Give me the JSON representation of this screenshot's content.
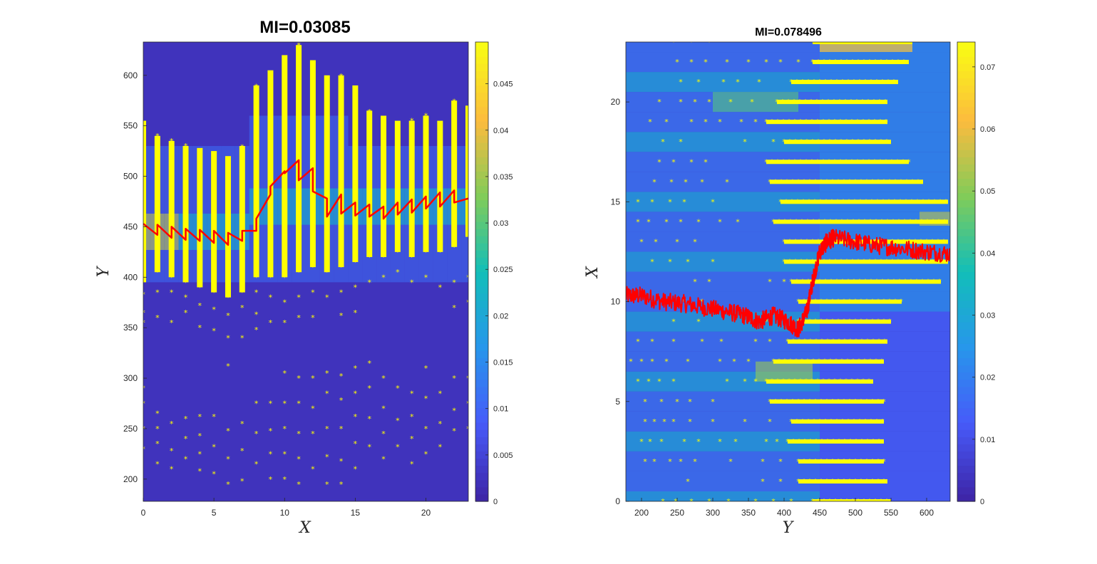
{
  "chart_data": [
    {
      "type": "heatmap",
      "title": "MI=0.03085",
      "xlabel": "X",
      "ylabel": "Y",
      "xlim": [
        0,
        23
      ],
      "ylim": [
        178,
        633
      ],
      "xticks": [
        0,
        5,
        10,
        15,
        20
      ],
      "yticks": [
        200,
        250,
        300,
        350,
        400,
        450,
        500,
        550,
        600
      ],
      "colorbar": {
        "range": [
          0,
          0.0495
        ],
        "ticks": [
          0,
          0.005,
          0.01,
          0.015,
          0.02,
          0.025,
          0.03,
          0.035,
          0.04,
          0.045
        ],
        "tick_labels": [
          "0",
          "0.005",
          "0.01",
          "0.015",
          "0.02",
          "0.025",
          "0.03",
          "0.035",
          "0.04",
          "0.045"
        ],
        "colormap": "parula"
      },
      "series": [
        {
          "kind": "line",
          "color": "#ff0000",
          "x": [
            0,
            1,
            1,
            2,
            2,
            3,
            3,
            4,
            4,
            5,
            5,
            6,
            6,
            7,
            7,
            8,
            8,
            9,
            9,
            10,
            10,
            11,
            11,
            12,
            12,
            13,
            13,
            14,
            14,
            15,
            15,
            16,
            16,
            17,
            17,
            18,
            18,
            19,
            19,
            20,
            20,
            21,
            21,
            22,
            22,
            23
          ],
          "y": [
            453,
            442,
            452,
            439,
            450,
            437,
            448,
            436,
            447,
            434,
            446,
            432,
            444,
            436,
            446,
            446,
            458,
            482,
            490,
            505,
            503,
            516,
            496,
            508,
            485,
            478,
            460,
            482,
            463,
            474,
            461,
            472,
            460,
            470,
            458,
            474,
            462,
            477,
            464,
            480,
            468,
            484,
            470,
            486,
            474,
            478
          ]
        },
        {
          "kind": "scatter",
          "marker": "*",
          "color": "#ffff00",
          "bands": [
            {
              "x": 0,
              "dense": [
                395,
                555
              ],
              "sparse": [
                383,
                365,
                355,
                290,
                275,
                250,
                230
              ]
            },
            {
              "x": 1,
              "dense": [
                405,
                540
              ],
              "sparse": [
                385,
                360,
                265,
                250,
                235,
                215
              ]
            },
            {
              "x": 2,
              "dense": [
                400,
                535
              ],
              "sparse": [
                385,
                355,
                255,
                228,
                210
              ]
            },
            {
              "x": 3,
              "dense": [
                395,
                530
              ],
              "sparse": [
                380,
                365,
                260,
                240,
                220
              ]
            },
            {
              "x": 4,
              "dense": [
                390,
                528
              ],
              "sparse": [
                372,
                350,
                262,
                243,
                225,
                208
              ]
            },
            {
              "x": 5,
              "dense": [
                385,
                525
              ],
              "sparse": [
                368,
                347,
                262,
                232,
                205
              ]
            },
            {
              "x": 6,
              "dense": [
                380,
                520
              ],
              "sparse": [
                362,
                340,
                312,
                248,
                220,
                195
              ]
            },
            {
              "x": 7,
              "dense": [
                385,
                530
              ],
              "sparse": [
                370,
                340,
                255,
                228,
                198
              ]
            },
            {
              "x": 8,
              "dense": [
                400,
                590
              ],
              "sparse": [
                385,
                363,
                348,
                275,
                245,
                215
              ]
            },
            {
              "x": 9,
              "dense": [
                400,
                605
              ],
              "sparse": [
                380,
                355,
                275,
                248,
                225,
                200
              ]
            },
            {
              "x": 10,
              "dense": [
                400,
                620
              ],
              "sparse": [
                375,
                355,
                305,
                275,
                250,
                225,
                200
              ]
            },
            {
              "x": 11,
              "dense": [
                405,
                630
              ],
              "sparse": [
                380,
                360,
                300,
                275,
                245,
                220,
                195
              ]
            },
            {
              "x": 12,
              "dense": [
                410,
                615
              ],
              "sparse": [
                385,
                360,
                300,
                270,
                245,
                210
              ]
            },
            {
              "x": 13,
              "dense": [
                405,
                600
              ],
              "sparse": [
                380,
                305,
                285,
                250,
                222,
                195
              ]
            },
            {
              "x": 14,
              "dense": [
                410,
                600
              ],
              "sparse": [
                385,
                362,
                302,
                278,
                250,
                218,
                195
              ]
            },
            {
              "x": 15,
              "dense": [
                415,
                590
              ],
              "sparse": [
                390,
                365,
                310,
                285,
                262,
                235,
                210
              ]
            },
            {
              "x": 16,
              "dense": [
                420,
                565
              ],
              "sparse": [
                395,
                315,
                290,
                260,
                232
              ]
            },
            {
              "x": 17,
              "dense": [
                420,
                560
              ],
              "sparse": [
                400,
                300,
                270,
                245,
                220
              ]
            },
            {
              "x": 18,
              "dense": [
                425,
                555
              ],
              "sparse": [
                405,
                290,
                258,
                232
              ]
            },
            {
              "x": 19,
              "dense": [
                420,
                555
              ],
              "sparse": [
                395,
                285,
                262,
                240,
                215
              ]
            },
            {
              "x": 20,
              "dense": [
                425,
                560
              ],
              "sparse": [
                400,
                310,
                280,
                250,
                225
              ]
            },
            {
              "x": 21,
              "dense": [
                425,
                555
              ],
              "sparse": [
                390,
                285,
                255,
                232
              ]
            },
            {
              "x": 22,
              "dense": [
                430,
                575
              ],
              "sparse": [
                395,
                370,
                300,
                268,
                248
              ]
            },
            {
              "x": 23,
              "dense": [
                440,
                570
              ],
              "sparse": [
                400,
                375,
                300,
                275,
                250
              ]
            }
          ]
        }
      ]
    },
    {
      "type": "heatmap",
      "title": "MI=0.078496",
      "xlabel": "Y",
      "ylabel": "X",
      "xlim": [
        178,
        633
      ],
      "ylim": [
        0,
        23
      ],
      "xticks": [
        200,
        250,
        300,
        350,
        400,
        450,
        500,
        550,
        600
      ],
      "yticks": [
        0,
        5,
        10,
        15,
        20
      ],
      "colorbar": {
        "range": [
          0,
          0.074
        ],
        "ticks": [
          0,
          0.01,
          0.02,
          0.03,
          0.04,
          0.05,
          0.06,
          0.07
        ],
        "tick_labels": [
          "0",
          "0.01",
          "0.02",
          "0.03",
          "0.04",
          "0.05",
          "0.06",
          "0.07"
        ],
        "colormap": "parula"
      },
      "series": [
        {
          "kind": "line",
          "color": "#ff0000",
          "noisy": true,
          "x": [
            178,
            200,
            230,
            260,
            290,
            320,
            345,
            365,
            385,
            405,
            420,
            432,
            440,
            450,
            460,
            470,
            500,
            530,
            560,
            600,
            633
          ],
          "y": [
            10.3,
            10.3,
            10.0,
            9.9,
            9.7,
            9.5,
            9.3,
            9.0,
            9.3,
            9.0,
            8.6,
            9.5,
            11.0,
            12.5,
            13.0,
            13.2,
            13.0,
            12.8,
            12.7,
            12.5,
            12.4
          ]
        },
        {
          "kind": "scatter",
          "marker": "*",
          "color": "#ffff00",
          "rows": [
            {
              "y": 0,
              "dense": [
                440,
                550
              ],
              "sparse": [
                230,
                248,
                270,
                295,
                322,
                360,
                385,
                410
              ]
            },
            {
              "y": 1,
              "dense": [
                420,
                545
              ],
              "sparse": [
                265,
                370,
                395
              ]
            },
            {
              "y": 2,
              "dense": [
                420,
                540
              ],
              "sparse": [
                205,
                218,
                240,
                255,
                275,
                325,
                370,
                395
              ]
            },
            {
              "y": 3,
              "dense": [
                405,
                540
              ],
              "sparse": [
                200,
                212,
                228,
                260,
                280,
                310,
                332,
                375,
                390
              ]
            },
            {
              "y": 4,
              "dense": [
                410,
                540
              ],
              "sparse": [
                205,
                218,
                232,
                245,
                268,
                300,
                345,
                380
              ]
            },
            {
              "y": 5,
              "dense": [
                380,
                540
              ],
              "sparse": [
                205,
                228,
                250,
                268,
                300
              ]
            },
            {
              "y": 6,
              "dense": [
                375,
                525
              ],
              "sparse": [
                195,
                210,
                225,
                245,
                320,
                345,
                360
              ]
            },
            {
              "y": 7,
              "dense": [
                385,
                540
              ],
              "sparse": [
                185,
                200,
                215,
                235,
                265,
                310,
                330,
                350
              ]
            },
            {
              "y": 8,
              "dense": [
                405,
                545
              ],
              "sparse": [
                195,
                215,
                245,
                285,
                312,
                360,
                380
              ]
            },
            {
              "y": 9,
              "dense": [
                420,
                550
              ],
              "sparse": [
                245,
                280,
                350,
                375
              ]
            },
            {
              "y": 10,
              "dense": [
                420,
                565
              ],
              "sparse": [
                260,
                285
              ]
            },
            {
              "y": 11,
              "dense": [
                410,
                620
              ],
              "sparse": [
                275,
                295,
                380,
                400
              ]
            },
            {
              "y": 12,
              "dense": [
                400,
                630
              ],
              "sparse": [
                215,
                240,
                265,
                300
              ]
            },
            {
              "y": 13,
              "dense": [
                400,
                630
              ],
              "sparse": [
                200,
                220,
                250,
                275
              ]
            },
            {
              "y": 14,
              "dense": [
                385,
                630
              ],
              "sparse": [
                195,
                210,
                235,
                255,
                280,
                310,
                335
              ]
            },
            {
              "y": 15,
              "dense": [
                395,
                630
              ],
              "sparse": [
                195,
                215,
                240,
                260,
                300
              ]
            },
            {
              "y": 16,
              "dense": [
                380,
                595
              ],
              "sparse": [
                218,
                242,
                262,
                285,
                320
              ]
            },
            {
              "y": 17,
              "dense": [
                375,
                575
              ],
              "sparse": [
                225,
                245,
                270,
                290
              ]
            },
            {
              "y": 18,
              "dense": [
                400,
                550
              ],
              "sparse": [
                230,
                255,
                345,
                385
              ]
            },
            {
              "y": 19,
              "dense": [
                375,
                545
              ],
              "sparse": [
                212,
                235,
                270,
                290,
                310,
                340,
                360
              ]
            },
            {
              "y": 20,
              "dense": [
                390,
                545
              ],
              "sparse": [
                225,
                255,
                275,
                295,
                325,
                355
              ]
            },
            {
              "y": 21,
              "dense": [
                410,
                560
              ],
              "sparse": [
                255,
                280,
                315,
                335,
                365
              ]
            },
            {
              "y": 22,
              "dense": [
                440,
                575
              ],
              "sparse": [
                250,
                270,
                290,
                320,
                350,
                375,
                395,
                420
              ]
            },
            {
              "y": 23,
              "dense": [
                440,
                580
              ],
              "sparse": [
                245,
                270,
                295
              ]
            }
          ]
        }
      ]
    }
  ]
}
